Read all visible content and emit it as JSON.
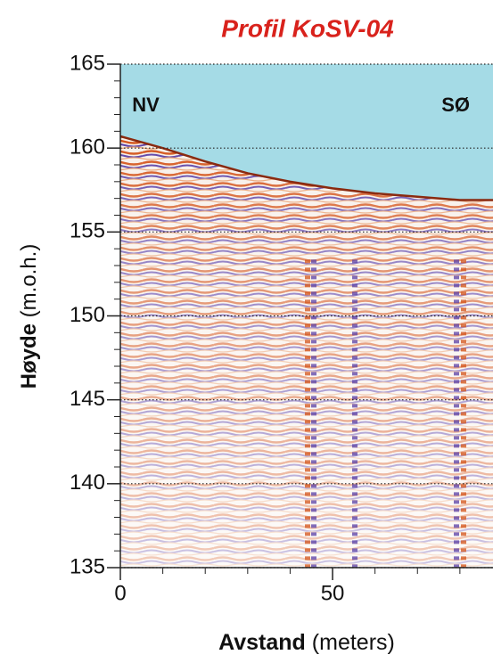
{
  "chart_data": {
    "type": "radargram",
    "title": "Profil KoSV-04",
    "xlabel": {
      "main": "Avstand",
      "unit": "(meters)"
    },
    "ylabel": {
      "main": "Høyde",
      "unit": "(m.o.h.)"
    },
    "annotations": [
      {
        "text": "NV",
        "x": 6,
        "y": 162.5
      },
      {
        "text": "SØ",
        "x": 79,
        "y": 162.5
      }
    ],
    "seabed": {
      "x": [
        0,
        10,
        20,
        30,
        40,
        50,
        60,
        70,
        80,
        87.8
      ],
      "values": [
        160.7,
        160.0,
        159.2,
        158.5,
        158.0,
        157.6,
        157.3,
        157.1,
        156.9,
        156.9
      ]
    },
    "water_color": "#a5dbe6",
    "xlim": [
      0,
      87.8
    ],
    "ylim": [
      135,
      165
    ],
    "xticks": [
      0,
      50
    ],
    "xticks_minor": [
      10,
      20,
      30,
      40,
      60,
      70,
      80
    ],
    "yticks": [
      135,
      140,
      145,
      150,
      155,
      160,
      165
    ],
    "yticks_minor": [
      136,
      137,
      138,
      139,
      141,
      142,
      143,
      144,
      146,
      147,
      148,
      149,
      151,
      152,
      153,
      154,
      156,
      157,
      158,
      159,
      161,
      162,
      163,
      164
    ],
    "grid": true
  }
}
